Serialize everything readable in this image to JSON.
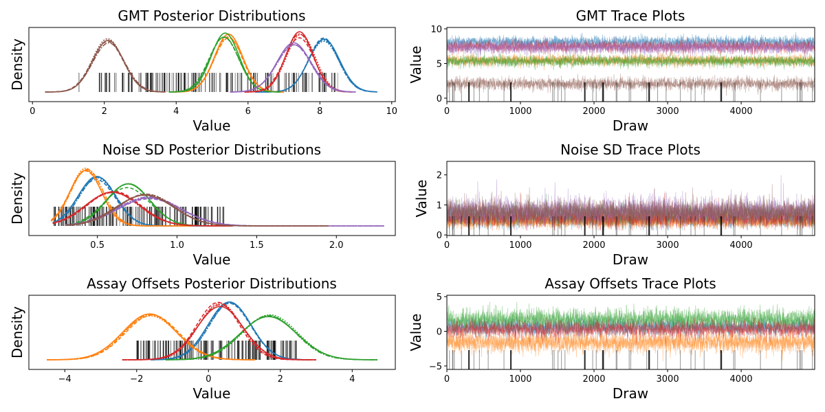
{
  "colors": {
    "blue": "#1f77b4",
    "orange": "#ff7f0e",
    "green": "#2ca02c",
    "red": "#d62728",
    "purple": "#9467bd",
    "brown": "#8c564b",
    "rug": "#000000"
  },
  "chart_data": [
    {
      "type": "line",
      "title": "GMT Posterior Distributions",
      "xlabel": "Value",
      "ylabel": "Density",
      "xlim": [
        -0.1,
        10.1
      ],
      "xticks": [
        0,
        2,
        4,
        6,
        8,
        10
      ],
      "yticks_shown": false,
      "series": [
        {
          "color": "blue",
          "mean": 8.1,
          "sd": 0.42,
          "range": [
            6.2,
            9.6
          ]
        },
        {
          "color": "orange",
          "mean": 5.45,
          "sd": 0.4,
          "range": [
            3.9,
            7.0
          ]
        },
        {
          "color": "green",
          "mean": 5.35,
          "sd": 0.4,
          "range": [
            3.8,
            6.9
          ]
        },
        {
          "color": "red",
          "mean": 7.45,
          "sd": 0.4,
          "range": [
            5.9,
            8.9
          ]
        },
        {
          "color": "purple",
          "mean": 7.3,
          "sd": 0.47,
          "range": [
            5.5,
            9.0
          ]
        },
        {
          "color": "brown",
          "mean": 2.1,
          "sd": 0.44,
          "range": [
            0.35,
            3.7
          ]
        }
      ],
      "rug_range": [
        1.2,
        8.5
      ]
    },
    {
      "type": "line",
      "title": "GMT Trace Plots",
      "xlabel": "Draw",
      "ylabel": "Value",
      "xlim": [
        0,
        4999
      ],
      "ylim": [
        -0.5,
        10.2
      ],
      "xticks": [
        0,
        1000,
        2000,
        3000,
        4000
      ],
      "yticks": [
        0,
        5,
        10
      ],
      "series": [
        {
          "color": "blue",
          "mean": 8.1,
          "sd": 0.42
        },
        {
          "color": "red",
          "mean": 7.45,
          "sd": 0.4
        },
        {
          "color": "orange",
          "mean": 5.45,
          "sd": 0.4
        },
        {
          "color": "purple",
          "mean": 7.3,
          "sd": 0.47
        },
        {
          "color": "green",
          "mean": 5.35,
          "sd": 0.4
        },
        {
          "color": "brown",
          "mean": 2.1,
          "sd": 0.44
        }
      ],
      "draws": 5000
    },
    {
      "type": "line",
      "title": "Noise SD Posterior Distributions",
      "xlabel": "Value",
      "ylabel": "Density",
      "xlim": [
        0.07,
        2.37
      ],
      "xticks": [
        0.5,
        1.0,
        1.5,
        2.0
      ],
      "yticks_shown": false,
      "series": [
        {
          "color": "blue",
          "mean": 0.5,
          "sd": 0.12,
          "range": [
            0.22,
            1.25
          ]
        },
        {
          "color": "orange",
          "mean": 0.43,
          "sd": 0.1,
          "range": [
            0.21,
            1.1
          ]
        },
        {
          "color": "green",
          "mean": 0.69,
          "sd": 0.14,
          "range": [
            0.3,
            1.35
          ]
        },
        {
          "color": "red",
          "mean": 0.6,
          "sd": 0.17,
          "range": [
            0.22,
            1.35
          ]
        },
        {
          "color": "purple",
          "mean": 0.82,
          "sd": 0.2,
          "range": [
            0.3,
            2.3
          ]
        },
        {
          "color": "brown",
          "mean": 0.8,
          "sd": 0.18,
          "range": [
            0.3,
            1.95
          ]
        }
      ],
      "rug_range": [
        0.22,
        1.3
      ]
    },
    {
      "type": "line",
      "title": "Noise SD Trace Plots",
      "xlabel": "Draw",
      "ylabel": "Value",
      "xlim": [
        0,
        4999
      ],
      "ylim": [
        -0.02,
        2.45
      ],
      "xticks": [
        0,
        1000,
        2000,
        3000,
        4000
      ],
      "yticks": [
        0,
        1,
        2
      ],
      "series": [
        {
          "color": "blue",
          "mean": 0.5,
          "sd": 0.12
        },
        {
          "color": "orange",
          "mean": 0.43,
          "sd": 0.1
        },
        {
          "color": "green",
          "mean": 0.69,
          "sd": 0.14
        },
        {
          "color": "red",
          "mean": 0.6,
          "sd": 0.17
        },
        {
          "color": "purple",
          "mean": 0.82,
          "sd": 0.2
        },
        {
          "color": "brown",
          "mean": 0.8,
          "sd": 0.18
        }
      ],
      "draws": 5000
    },
    {
      "type": "line",
      "title": "Assay Offsets Posterior Distributions",
      "xlabel": "Value",
      "ylabel": "Density",
      "xlim": [
        -5.0,
        5.2
      ],
      "xticks": [
        -4,
        -2,
        0,
        2,
        4
      ],
      "yticks_shown": false,
      "series": [
        {
          "color": "blue",
          "mean": 0.6,
          "sd": 0.6,
          "range": [
            -1.6,
            2.8
          ]
        },
        {
          "color": "orange",
          "mean": -1.6,
          "sd": 0.75,
          "range": [
            -4.5,
            1.3
          ]
        },
        {
          "color": "green",
          "mean": 1.7,
          "sd": 0.78,
          "range": [
            -1.2,
            4.7
          ]
        },
        {
          "color": "red",
          "mean": 0.3,
          "sd": 0.62,
          "range": [
            -2.4,
            3.0
          ]
        }
      ],
      "rug_range": [
        -2.0,
        2.5
      ]
    },
    {
      "type": "line",
      "title": "Assay Offsets Trace Plots",
      "xlabel": "Draw",
      "ylabel": "Value",
      "xlim": [
        0,
        4999
      ],
      "ylim": [
        -5.5,
        5.2
      ],
      "xticks": [
        0,
        1000,
        2000,
        3000,
        4000
      ],
      "yticks": [
        -5,
        0,
        5
      ],
      "series": [
        {
          "color": "blue",
          "mean": 0.6,
          "sd": 0.6
        },
        {
          "color": "green",
          "mean": 1.7,
          "sd": 0.78
        },
        {
          "color": "orange",
          "mean": -1.6,
          "sd": 0.75
        },
        {
          "color": "red",
          "mean": 0.3,
          "sd": 0.62
        }
      ],
      "draws": 5000
    }
  ]
}
